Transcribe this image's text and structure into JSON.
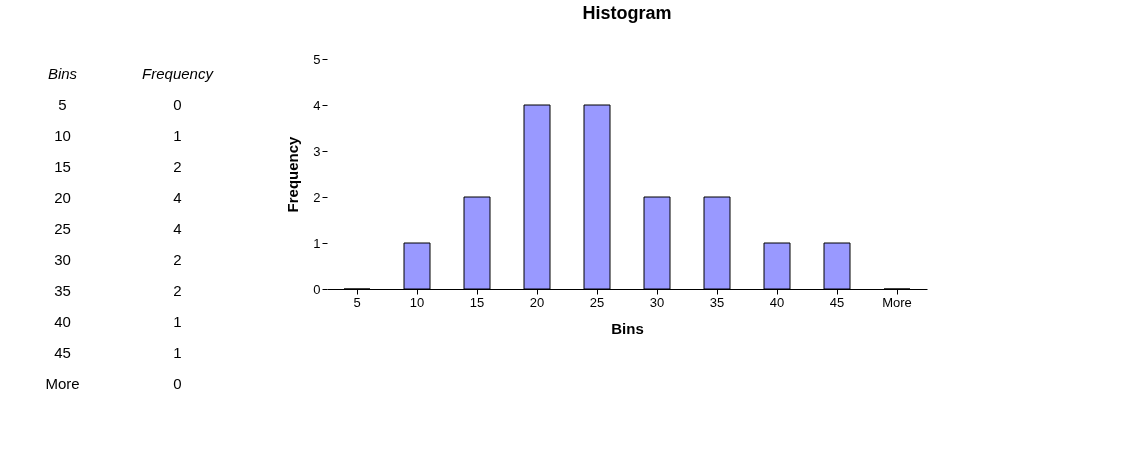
{
  "chart_data": {
    "type": "bar",
    "title": "Histogram",
    "xlabel": "Bins",
    "ylabel": "Frequency",
    "categories": [
      "5",
      "10",
      "15",
      "20",
      "25",
      "30",
      "35",
      "40",
      "45",
      "More"
    ],
    "values": [
      0,
      1,
      2,
      4,
      4,
      2,
      2,
      1,
      1,
      0
    ],
    "color": "#9999ff",
    "ylim": [
      0,
      5
    ],
    "yticks": [
      0,
      1,
      2,
      3,
      4,
      5
    ],
    "annotations": [
      "Bins",
      "Frequency",
      "5",
      "0",
      "10",
      "1",
      "15",
      "2",
      "20",
      "4",
      "25",
      "4",
      "30",
      "2",
      "35",
      "2",
      "40",
      "1",
      "45",
      "1",
      "More",
      "0"
    ]
  }
}
